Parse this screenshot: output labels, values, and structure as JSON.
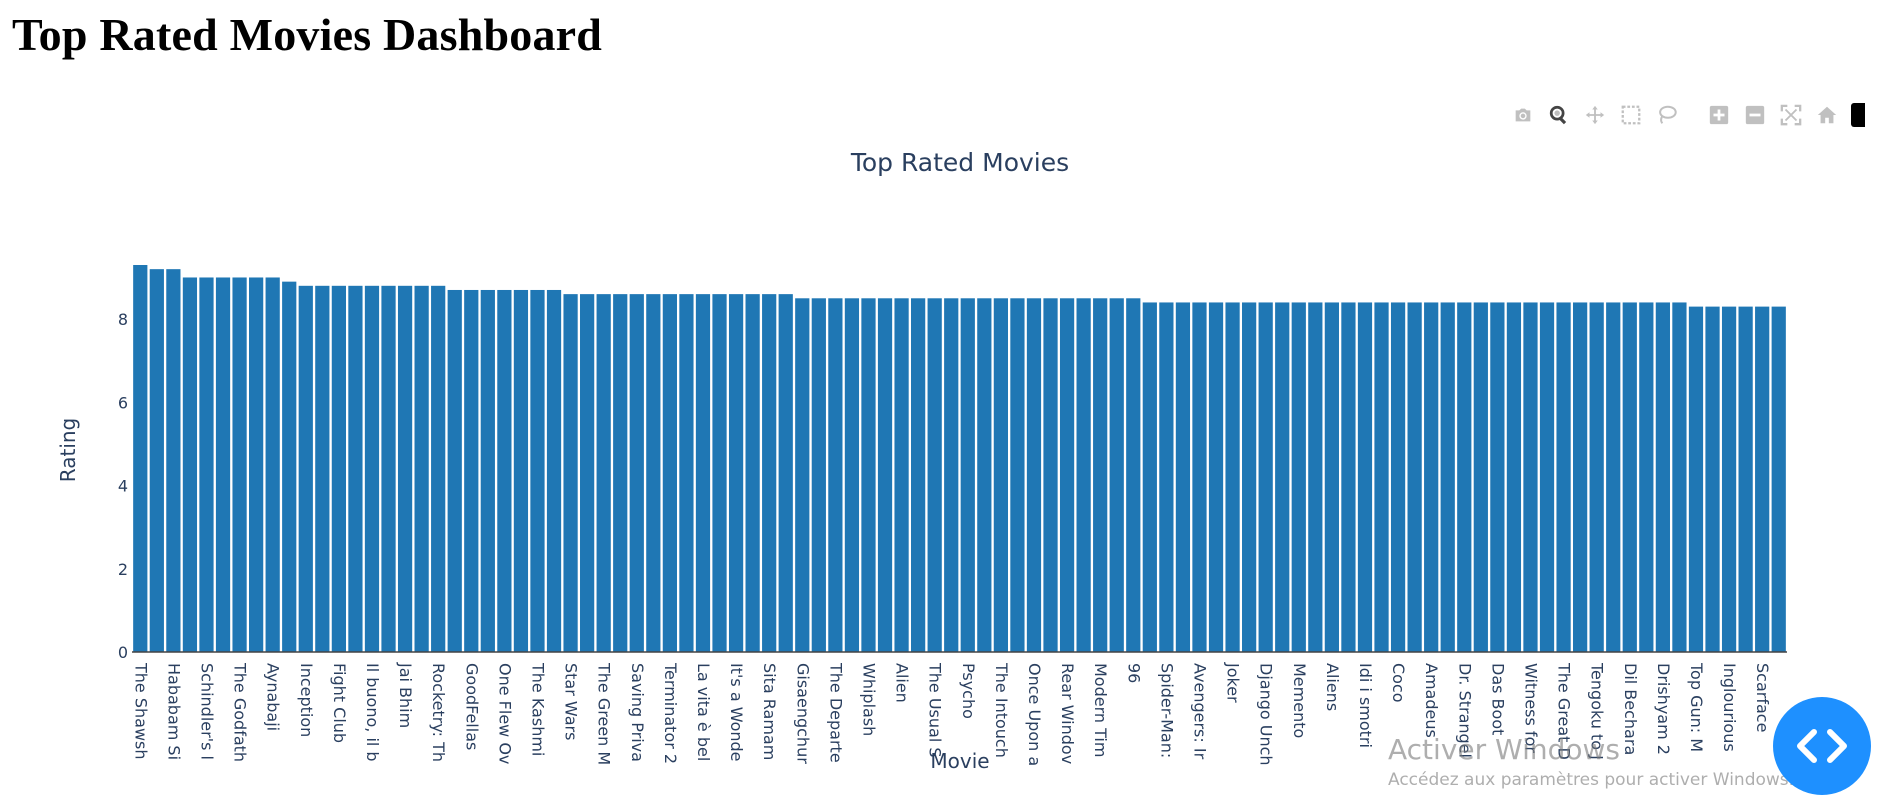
{
  "page": {
    "title": "Top Rated Movies Dashboard"
  },
  "modebar": {
    "buttons": [
      "camera-icon",
      "zoom-icon",
      "pan-icon",
      "box-select-icon",
      "lasso-select-icon",
      "zoom-in-icon",
      "zoom-out-icon",
      "autoscale-icon",
      "reset-axes-icon",
      "plotly-logo"
    ],
    "active": "zoom-icon"
  },
  "chart_data": {
    "type": "bar",
    "title": "Top Rated Movies",
    "xlabel": "Movie",
    "ylabel": "Rating",
    "ylim": [
      0,
      9.3
    ],
    "yticks": [
      0,
      2,
      4,
      6,
      8
    ],
    "grid": false,
    "color": "#1f77b4",
    "categories": [
      "The Shawsh",
      "",
      "Hababam Si",
      "",
      "Schindler's l",
      "",
      "The Godfath",
      "",
      "Aynabaji",
      "",
      "Inception",
      "",
      "Fight Club",
      "",
      "Il buono, il b",
      "",
      "Jai Bhim",
      "",
      "Rocketry: Th",
      "",
      "GoodFellas",
      "",
      "One Flew Ov",
      "",
      "The Kashmi",
      "",
      "Star Wars",
      "",
      "The Green M",
      "",
      "Saving Priva",
      "",
      "Terminator 2",
      "",
      "La vita è bel",
      "",
      "It's a Wonde",
      "",
      "Sita Ramam",
      "",
      "Gisaengchur",
      "",
      "The Departe",
      "",
      "Whiplash",
      "",
      "Alien",
      "",
      "The Usual S",
      "",
      "Psycho",
      "",
      "The Intouch",
      "",
      "Once Upon a",
      "",
      "Rear Windov",
      "",
      "Modern Tim",
      "",
      "96",
      "",
      "Spider-Man:",
      "",
      "Avengers: Ir",
      "",
      "Joker",
      "",
      "Django Unch",
      "",
      "Memento",
      "",
      "Aliens",
      "",
      "Idi i smotri",
      "",
      "Coco",
      "",
      "Amadeus",
      "",
      "Dr. Strangel",
      "",
      "Das Boot",
      "",
      "Witness for",
      "",
      "The Great D",
      "",
      "Tengoku to J",
      "",
      "Dil Bechara",
      "",
      "Drishyam 2",
      "",
      "Top Gun: M",
      "",
      "Inglourious",
      "",
      "Scarface",
      ""
    ],
    "values": [
      9.3,
      9.2,
      9.2,
      9.0,
      9.0,
      9.0,
      9.0,
      9.0,
      9.0,
      8.9,
      8.8,
      8.8,
      8.8,
      8.8,
      8.8,
      8.8,
      8.8,
      8.8,
      8.8,
      8.7,
      8.7,
      8.7,
      8.7,
      8.7,
      8.7,
      8.7,
      8.6,
      8.6,
      8.6,
      8.6,
      8.6,
      8.6,
      8.6,
      8.6,
      8.6,
      8.6,
      8.6,
      8.6,
      8.6,
      8.6,
      8.5,
      8.5,
      8.5,
      8.5,
      8.5,
      8.5,
      8.5,
      8.5,
      8.5,
      8.5,
      8.5,
      8.5,
      8.5,
      8.5,
      8.5,
      8.5,
      8.5,
      8.5,
      8.5,
      8.5,
      8.5,
      8.4,
      8.4,
      8.4,
      8.4,
      8.4,
      8.4,
      8.4,
      8.4,
      8.4,
      8.4,
      8.4,
      8.4,
      8.4,
      8.4,
      8.4,
      8.4,
      8.4,
      8.4,
      8.4,
      8.4,
      8.4,
      8.4,
      8.4,
      8.4,
      8.4,
      8.4,
      8.4,
      8.4,
      8.4,
      8.4,
      8.4,
      8.4,
      8.4,
      8.3,
      8.3,
      8.3,
      8.3,
      8.3,
      8.3
    ]
  },
  "watermark": {
    "title": "Activer Windows",
    "subtitle": "Accédez aux paramètres pour activer Windows."
  },
  "fab": {
    "icon": "code-icon"
  }
}
